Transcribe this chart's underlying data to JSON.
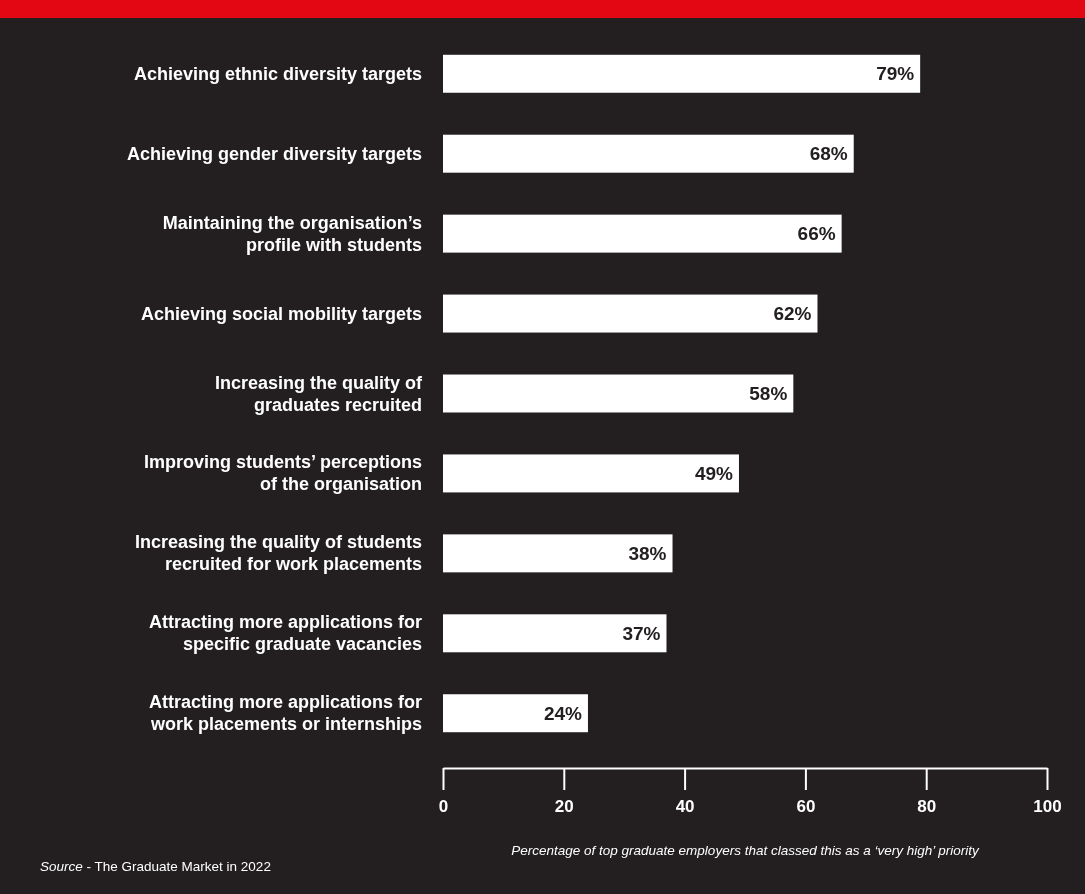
{
  "chart_data": {
    "type": "bar",
    "orientation": "horizontal",
    "categories": [
      "Achieving ethnic diversity targets",
      "Achieving gender diversity targets",
      "Maintaining the organisation’s profile with students",
      "Achieving social mobility targets",
      "Increasing the quality of graduates recruited",
      "Improving students’ perceptions of the organisation",
      "Increasing the quality of students recruited for work placements",
      "Attracting more applications for specific graduate vacancies",
      "Attracting more applications for work placements or internships"
    ],
    "values": [
      79,
      68,
      66,
      62,
      58,
      49,
      38,
      37,
      24
    ],
    "value_labels": [
      "79%",
      "68%",
      "66%",
      "62%",
      "58%",
      "49%",
      "38%",
      "37%",
      "24%"
    ],
    "color": "#ffffff",
    "xlim": [
      0,
      100
    ],
    "xticks": [
      0,
      20,
      40,
      60,
      80,
      100
    ],
    "xlabel": "Percentage of top graduate employers that classed this as a ‘very high’ priority",
    "annotations": [
      "Source - The Graduate Market in 2022"
    ],
    "grid": false
  }
}
